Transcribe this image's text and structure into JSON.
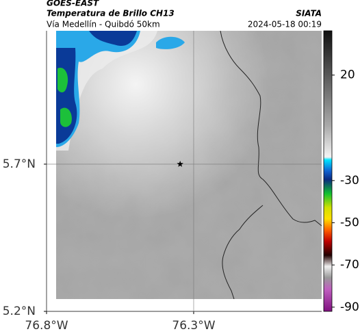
{
  "header": {
    "title": "GOES-EAST",
    "subtitle": "Temperatura de Brillo CH13",
    "route": "Vía Medellín - Quibdó 50km",
    "source": "SIATA",
    "timestamp": "2024-05-18 00:19"
  },
  "map": {
    "xlim": [
      -76.8,
      -75.865
    ],
    "ylim": [
      5.2,
      6.153
    ],
    "xticks": [
      {
        "value": -76.8,
        "label": "76.8°W"
      },
      {
        "value": -76.3,
        "label": "76.3°W"
      }
    ],
    "yticks": [
      {
        "value": 5.7,
        "label": "5.7°N"
      },
      {
        "value": 5.2,
        "label": "5.2°N"
      }
    ],
    "grid": true,
    "marker": {
      "lon": -76.346,
      "lat": 5.7
    }
  },
  "colorbar": {
    "lim": [
      -92,
      41
    ],
    "ticks": [
      20,
      -30,
      -50,
      -70,
      -90
    ]
  }
}
